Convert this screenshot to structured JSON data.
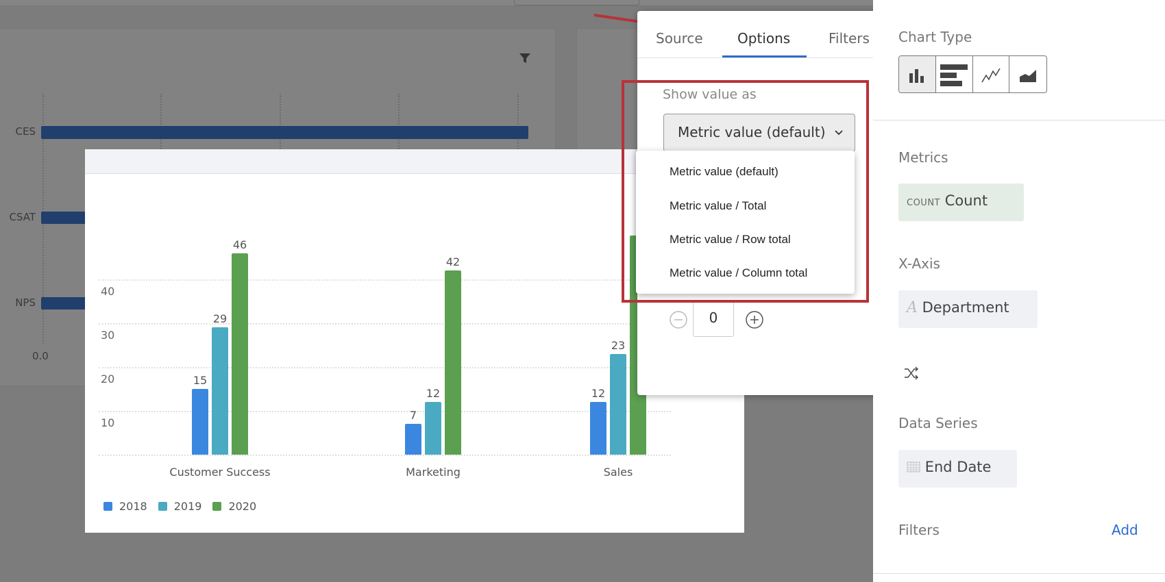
{
  "background": {
    "bar_labels": [
      "CES",
      "CSAT",
      "NPS"
    ],
    "axis_start": "0.0",
    "bar_color": "#203f6d"
  },
  "chart_data": {
    "type": "bar",
    "categories": [
      "Customer Success",
      "Marketing",
      "Sales"
    ],
    "series": [
      {
        "name": "2018",
        "color": "#3b87e0",
        "values": [
          15,
          7,
          12
        ]
      },
      {
        "name": "2019",
        "color": "#4aaac2",
        "values": [
          29,
          12,
          23
        ]
      },
      {
        "name": "2020",
        "color": "#5b9f51",
        "values": [
          46,
          42,
          null
        ]
      }
    ],
    "yticks": [
      "10",
      "20",
      "30",
      "40"
    ],
    "ylim": [
      0,
      50
    ],
    "grid": true,
    "legend": "bottom-left"
  },
  "popup": {
    "tabs": [
      {
        "label": "Source"
      },
      {
        "label": "Options"
      },
      {
        "label": "Filters"
      }
    ],
    "active_tab": "Options",
    "show_value_label": "Show value as",
    "select_value": "Metric value (default)",
    "options": [
      "Metric value (default)",
      "Metric value / Total",
      "Metric value / Row total",
      "Metric value / Column total"
    ],
    "stepper_value": "0",
    "highlight_color": "#b8323a"
  },
  "panel": {
    "chart_type_label": "Chart Type",
    "chart_types": [
      "bar-chart-icon",
      "horizontal-bar-icon",
      "line-chart-icon",
      "area-chart-icon"
    ],
    "metrics_label": "Metrics",
    "metric_prefix": "COUNT",
    "metric_name": "Count",
    "xaxis_label": "X-Axis",
    "xaxis_value": "Department",
    "data_series_label": "Data Series",
    "data_series_value": "End Date",
    "filters_label": "Filters",
    "add_label": "Add"
  }
}
